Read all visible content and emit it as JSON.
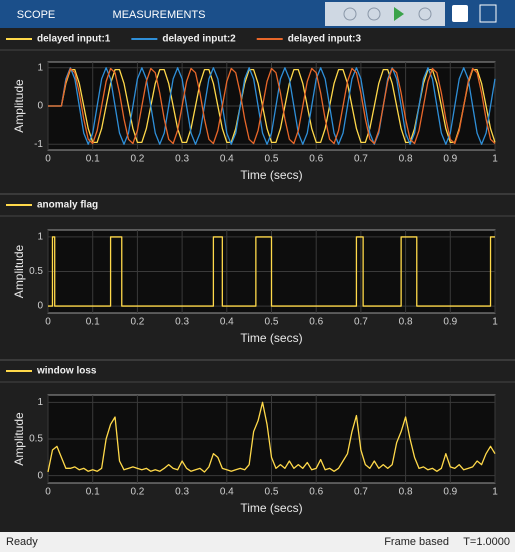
{
  "toolbar": {
    "tabs": [
      "SCOPE",
      "MEASUREMENTS"
    ]
  },
  "status": {
    "left": "Ready",
    "mode": "Frame based",
    "time": "T=1.0000"
  },
  "chart_data": [
    {
      "type": "line",
      "xlabel": "Time (secs)",
      "ylabel": "Amplitude",
      "x": [
        0,
        0.01,
        0.02,
        0.03,
        0.04,
        0.05,
        0.06,
        0.07,
        0.08,
        0.09,
        0.1,
        0.11,
        0.12,
        0.13,
        0.14,
        0.15,
        0.16,
        0.17,
        0.18,
        0.19,
        0.2,
        0.21,
        0.22,
        0.23,
        0.24,
        0.25,
        0.26,
        0.27,
        0.28,
        0.29,
        0.3,
        0.31,
        0.32,
        0.33,
        0.34,
        0.35,
        0.36,
        0.37,
        0.38,
        0.39,
        0.4,
        0.41,
        0.42,
        0.43,
        0.44,
        0.45,
        0.46,
        0.47,
        0.48,
        0.49,
        0.5,
        0.51,
        0.52,
        0.53,
        0.54,
        0.55,
        0.56,
        0.57,
        0.58,
        0.59,
        0.6,
        0.61,
        0.62,
        0.63,
        0.64,
        0.65,
        0.66,
        0.67,
        0.68,
        0.69,
        0.7,
        0.71,
        0.72,
        0.73,
        0.74,
        0.75,
        0.76,
        0.77,
        0.78,
        0.79,
        0.8,
        0.81,
        0.82,
        0.83,
        0.84,
        0.85,
        0.86,
        0.87,
        0.88,
        0.89,
        0.9,
        0.91,
        0.92,
        0.93,
        0.94,
        0.95,
        0.96,
        0.97,
        0.98,
        0.99,
        1
      ],
      "xlim": [
        0,
        1
      ],
      "xticks": [
        0,
        0.1,
        0.2,
        0.3,
        0.4,
        0.5,
        0.6,
        0.7,
        0.8,
        0.9,
        1
      ],
      "ylim": [
        -1.15,
        1.15
      ],
      "yticks": [
        -1,
        0,
        1
      ],
      "grid": true,
      "series": [
        {
          "name": "delayed input:1",
          "color": "#ffd94a",
          "values": [
            0,
            0,
            0,
            0,
            0.59,
            0.95,
            0.95,
            0.59,
            0,
            -0.59,
            -0.95,
            -0.95,
            -0.59,
            0,
            0.59,
            0.95,
            0.95,
            0.59,
            0,
            -0.59,
            -0.95,
            -0.95,
            -0.59,
            0,
            0.59,
            0.95,
            0.95,
            0.59,
            0,
            -0.59,
            -0.95,
            -0.95,
            -0.59,
            0,
            0.59,
            0.95,
            0.95,
            0.59,
            0,
            -0.59,
            -0.95,
            -0.95,
            -0.59,
            0,
            0.59,
            0.95,
            0.95,
            0.59,
            0,
            -0.59,
            -0.95,
            -0.95,
            -0.59,
            0,
            0.59,
            0.95,
            0.95,
            0.59,
            0,
            -0.59,
            -0.95,
            -0.95,
            -0.59,
            0,
            0.59,
            0.95,
            0.95,
            0.59,
            0,
            -0.59,
            -0.95,
            -0.95,
            -0.59,
            0,
            0.59,
            0.95,
            0.95,
            0.59,
            0,
            -0.59,
            -0.95,
            -0.95,
            -0.59,
            0,
            0.59,
            0.95,
            0.95,
            0.59,
            0,
            -0.59,
            -0.95,
            -0.95,
            -0.59,
            0,
            0.59,
            0.95,
            0.95,
            0.59,
            0,
            -0.59,
            -0.95
          ]
        },
        {
          "name": "delayed input:2",
          "color": "#2f8fd8",
          "values": [
            0,
            0,
            0,
            0,
            0.71,
            1,
            0.71,
            0,
            -0.71,
            -1,
            -0.71,
            0,
            0.71,
            1,
            0.71,
            0,
            -0.71,
            -1,
            -0.71,
            0,
            0.71,
            1,
            0.71,
            0,
            -0.71,
            -1,
            -0.71,
            0,
            0.71,
            1,
            0.71,
            0,
            -0.71,
            -1,
            -0.71,
            0,
            0.71,
            1,
            0.71,
            0,
            -0.71,
            -1,
            -0.71,
            0,
            0.71,
            1,
            0.71,
            0,
            -0.71,
            -1,
            -0.71,
            0,
            0.71,
            1,
            0.71,
            0,
            -0.71,
            -1,
            -0.71,
            0,
            0.71,
            1,
            0.71,
            0,
            -0.71,
            -1,
            -0.71,
            0,
            0.71,
            1,
            0.71,
            0,
            -0.71,
            -1,
            -0.71,
            0,
            0.71,
            1,
            0.71,
            0,
            -0.71,
            -1,
            -0.71,
            0,
            0.71,
            1,
            0.71,
            0,
            -0.71,
            -1,
            -0.71,
            0,
            0.71,
            1,
            0.71,
            0,
            -0.71,
            -1,
            -0.71,
            0,
            0.71
          ]
        },
        {
          "name": "delayed input:3",
          "color": "#e8672a",
          "values": [
            0,
            0,
            0,
            0,
            0.64,
            0.98,
            0.87,
            0.34,
            -0.34,
            -0.87,
            -0.98,
            -0.64,
            0,
            0.64,
            0.98,
            0.87,
            0.34,
            -0.34,
            -0.87,
            -0.98,
            -0.64,
            0,
            0.64,
            0.98,
            0.87,
            0.34,
            -0.34,
            -0.87,
            -0.98,
            -0.64,
            0,
            0.64,
            0.98,
            0.87,
            0.34,
            -0.34,
            -0.87,
            -0.98,
            -0.64,
            0,
            0.64,
            0.98,
            0.87,
            0.34,
            -0.34,
            -0.87,
            -0.98,
            -0.64,
            0,
            0.64,
            0.98,
            0.87,
            0.34,
            -0.34,
            -0.87,
            -0.98,
            -0.64,
            0,
            0.64,
            0.98,
            0.87,
            0.34,
            -0.34,
            -0.87,
            -0.98,
            -0.64,
            0,
            0.64,
            0.98,
            0.87,
            0.34,
            -0.34,
            -0.87,
            -0.98,
            -0.64,
            0,
            0.64,
            0.98,
            0.87,
            0.34,
            -0.34,
            -0.87,
            -0.98,
            -0.64,
            0,
            0.64,
            0.98,
            0.87,
            0.34,
            -0.34,
            -0.87,
            -0.98,
            -0.64,
            0,
            0.64,
            0.98,
            0.87,
            0.34,
            -0.34,
            -0.87,
            -0.98
          ]
        }
      ]
    },
    {
      "type": "line",
      "xlabel": "Time (secs)",
      "ylabel": "Amplitude",
      "x": [
        0,
        0.01,
        0.01,
        0.015,
        0.015,
        0.14,
        0.14,
        0.165,
        0.165,
        0.37,
        0.37,
        0.39,
        0.39,
        0.465,
        0.465,
        0.5,
        0.5,
        0.69,
        0.69,
        0.705,
        0.705,
        0.79,
        0.79,
        0.825,
        0.825,
        0.99,
        0.99,
        1
      ],
      "xlim": [
        0,
        1
      ],
      "xticks": [
        0,
        0.1,
        0.2,
        0.3,
        0.4,
        0.5,
        0.6,
        0.7,
        0.8,
        0.9,
        1
      ],
      "ylim": [
        -0.1,
        1.1
      ],
      "yticks": [
        0,
        0.5,
        1
      ],
      "grid": true,
      "series": [
        {
          "name": "anomaly flag",
          "color": "#ffd94a",
          "values": [
            0,
            0,
            1,
            1,
            0,
            0,
            1,
            1,
            0,
            0,
            1,
            1,
            0,
            0,
            1,
            1,
            0,
            0,
            1,
            1,
            0,
            0,
            1,
            1,
            0,
            0,
            1,
            1
          ]
        }
      ]
    },
    {
      "type": "line",
      "xlabel": "Time (secs)",
      "ylabel": "Amplitude",
      "x": [
        0,
        0.01,
        0.02,
        0.03,
        0.04,
        0.05,
        0.06,
        0.07,
        0.08,
        0.09,
        0.1,
        0.11,
        0.12,
        0.13,
        0.14,
        0.15,
        0.16,
        0.17,
        0.18,
        0.19,
        0.2,
        0.21,
        0.22,
        0.23,
        0.24,
        0.25,
        0.26,
        0.27,
        0.28,
        0.29,
        0.3,
        0.31,
        0.32,
        0.33,
        0.34,
        0.35,
        0.36,
        0.37,
        0.38,
        0.39,
        0.4,
        0.41,
        0.42,
        0.43,
        0.44,
        0.45,
        0.46,
        0.47,
        0.48,
        0.49,
        0.5,
        0.51,
        0.52,
        0.53,
        0.54,
        0.55,
        0.56,
        0.57,
        0.58,
        0.59,
        0.6,
        0.61,
        0.62,
        0.63,
        0.64,
        0.65,
        0.66,
        0.67,
        0.68,
        0.69,
        0.7,
        0.71,
        0.72,
        0.73,
        0.74,
        0.75,
        0.76,
        0.77,
        0.78,
        0.79,
        0.8,
        0.81,
        0.82,
        0.83,
        0.84,
        0.85,
        0.86,
        0.87,
        0.88,
        0.89,
        0.9,
        0.91,
        0.92,
        0.93,
        0.94,
        0.95,
        0.96,
        0.97,
        0.98,
        0.99,
        1
      ],
      "xlim": [
        0,
        1
      ],
      "xticks": [
        0,
        0.1,
        0.2,
        0.3,
        0.4,
        0.5,
        0.6,
        0.7,
        0.8,
        0.9,
        1
      ],
      "ylim": [
        -0.1,
        1.1
      ],
      "yticks": [
        0,
        0.5,
        1
      ],
      "grid": true,
      "series": [
        {
          "name": "window loss",
          "color": "#ffd94a",
          "values": [
            0.05,
            0.35,
            0.4,
            0.25,
            0.1,
            0.1,
            0.12,
            0.08,
            0.1,
            0.06,
            0.08,
            0.06,
            0.1,
            0.5,
            0.7,
            0.8,
            0.2,
            0.08,
            0.1,
            0.12,
            0.1,
            0.08,
            0.1,
            0.06,
            0.08,
            0.06,
            0.1,
            0.15,
            0.1,
            0.08,
            0.2,
            0.1,
            0.06,
            0.08,
            0.1,
            0.05,
            0.12,
            0.3,
            0.25,
            0.1,
            0.08,
            0.06,
            0.08,
            0.1,
            0.08,
            0.15,
            0.6,
            0.75,
            1.0,
            0.7,
            0.25,
            0.1,
            0.15,
            0.1,
            0.2,
            0.1,
            0.15,
            0.1,
            0.18,
            0.08,
            0.1,
            0.22,
            0.08,
            0.1,
            0.06,
            0.1,
            0.2,
            0.3,
            0.6,
            0.82,
            0.35,
            0.15,
            0.1,
            0.2,
            0.1,
            0.15,
            0.1,
            0.15,
            0.45,
            0.6,
            0.8,
            0.5,
            0.25,
            0.1,
            0.12,
            0.08,
            0.1,
            0.06,
            0.1,
            0.3,
            0.12,
            0.1,
            0.15,
            0.08,
            0.1,
            0.12,
            0.2,
            0.15,
            0.3,
            0.4,
            0.3
          ]
        }
      ]
    }
  ]
}
